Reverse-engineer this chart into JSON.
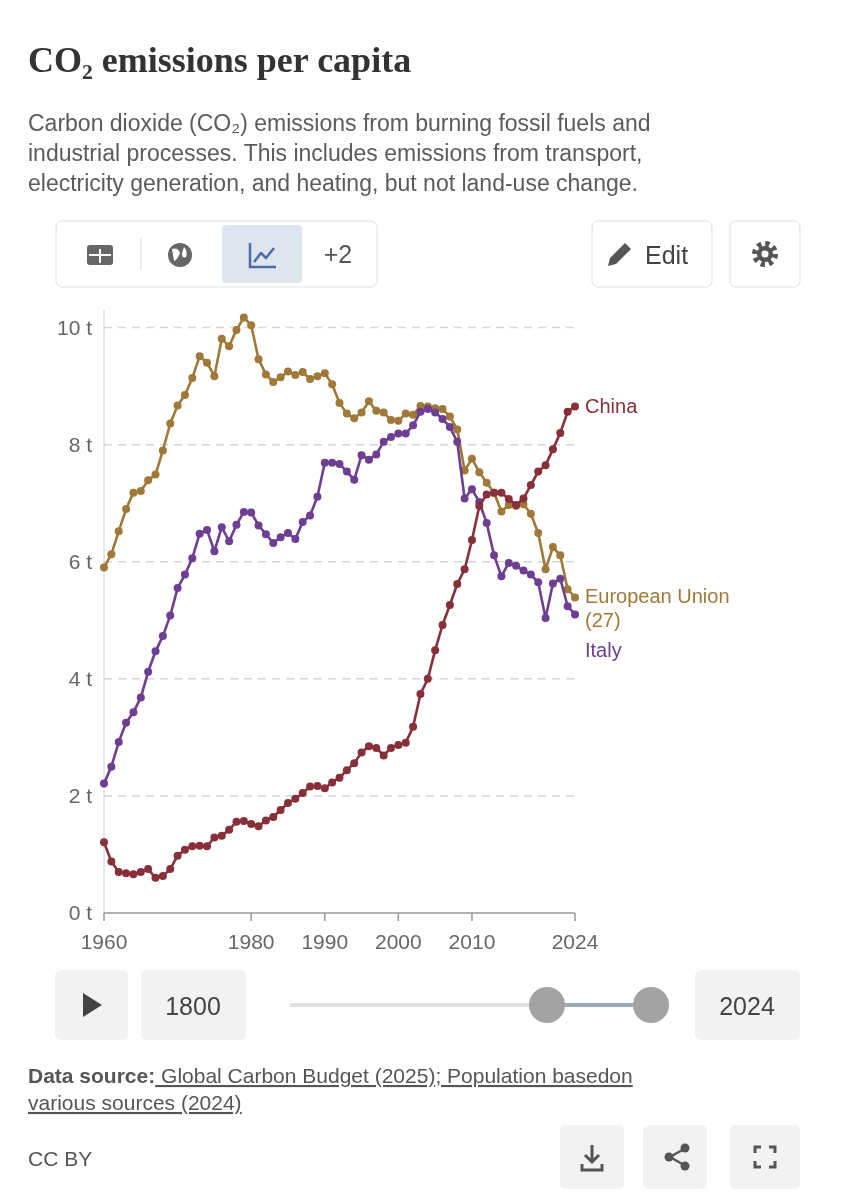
{
  "chart_data": {
    "type": "line",
    "title": "CO₂ emissions per capita",
    "subtitle": "Carbon dioxide (CO₂) emissions from burning fossil fuels and industrial processes. This includes emissions from transport, electricity generation, and heating, but not land-use change.",
    "x": [
      1960,
      1961,
      1962,
      1963,
      1964,
      1965,
      1966,
      1967,
      1968,
      1969,
      1970,
      1971,
      1972,
      1973,
      1974,
      1975,
      1976,
      1977,
      1978,
      1979,
      1980,
      1981,
      1982,
      1983,
      1984,
      1985,
      1986,
      1987,
      1988,
      1989,
      1990,
      1991,
      1992,
      1993,
      1994,
      1995,
      1996,
      1997,
      1998,
      1999,
      2000,
      2001,
      2002,
      2003,
      2004,
      2005,
      2006,
      2007,
      2008,
      2009,
      2010,
      2011,
      2012,
      2013,
      2014,
      2015,
      2016,
      2017,
      2018,
      2019,
      2020,
      2021,
      2022,
      2023,
      2024
    ],
    "xlim": [
      1960,
      2024
    ],
    "xticks": [
      1960,
      1980,
      1990,
      2000,
      2010,
      2024
    ],
    "ylim": [
      0,
      10.3
    ],
    "yticks": [
      {
        "value": 0,
        "label": "0 t"
      },
      {
        "value": 2,
        "label": "2 t"
      },
      {
        "value": 4,
        "label": "4 t"
      },
      {
        "value": 6,
        "label": "6 t"
      },
      {
        "value": 8,
        "label": "8 t"
      },
      {
        "value": 10,
        "label": "10 t"
      }
    ],
    "grid": "y",
    "marker": "circle",
    "line_style": "solid",
    "series": [
      {
        "name": "European Union (27)",
        "color": "#a07838",
        "values": [
          5.9,
          6.13,
          6.52,
          6.9,
          7.18,
          7.21,
          7.39,
          7.49,
          7.9,
          8.36,
          8.67,
          8.85,
          9.14,
          9.51,
          9.4,
          9.17,
          9.81,
          9.68,
          9.96,
          10.17,
          10.04,
          9.46,
          9.2,
          9.07,
          9.15,
          9.25,
          9.19,
          9.24,
          9.12,
          9.17,
          9.22,
          9.03,
          8.71,
          8.53,
          8.45,
          8.55,
          8.74,
          8.58,
          8.55,
          8.42,
          8.41,
          8.53,
          8.51,
          8.66,
          8.65,
          8.62,
          8.61,
          8.48,
          8.26,
          7.56,
          7.76,
          7.53,
          7.35,
          7.18,
          6.86,
          6.97,
          6.95,
          6.98,
          6.82,
          6.49,
          5.87,
          6.25,
          6.11,
          5.53,
          5.39
        ]
      },
      {
        "name": "Italy",
        "color": "#6d3e91",
        "values": [
          2.21,
          2.5,
          2.92,
          3.25,
          3.43,
          3.68,
          4.12,
          4.47,
          4.73,
          5.08,
          5.55,
          5.78,
          6.06,
          6.48,
          6.54,
          6.18,
          6.59,
          6.35,
          6.63,
          6.85,
          6.84,
          6.62,
          6.47,
          6.32,
          6.42,
          6.49,
          6.39,
          6.68,
          6.79,
          7.11,
          7.69,
          7.69,
          7.67,
          7.54,
          7.4,
          7.82,
          7.74,
          7.83,
          8.05,
          8.13,
          8.19,
          8.19,
          8.33,
          8.56,
          8.61,
          8.55,
          8.44,
          8.3,
          8.05,
          7.08,
          7.24,
          7.02,
          6.66,
          6.11,
          5.75,
          5.98,
          5.93,
          5.85,
          5.78,
          5.65,
          5.04,
          5.63,
          5.71,
          5.24,
          5.1
        ]
      },
      {
        "name": "China",
        "color": "#883039",
        "values": [
          1.21,
          0.88,
          0.7,
          0.68,
          0.66,
          0.7,
          0.75,
          0.6,
          0.63,
          0.75,
          0.98,
          1.08,
          1.14,
          1.15,
          1.14,
          1.29,
          1.32,
          1.42,
          1.56,
          1.57,
          1.52,
          1.48,
          1.58,
          1.64,
          1.76,
          1.88,
          1.95,
          2.05,
          2.16,
          2.17,
          2.13,
          2.23,
          2.31,
          2.44,
          2.56,
          2.74,
          2.85,
          2.82,
          2.69,
          2.82,
          2.87,
          2.91,
          3.18,
          3.74,
          4.0,
          4.49,
          4.92,
          5.26,
          5.62,
          5.87,
          6.37,
          6.95,
          7.15,
          7.18,
          7.18,
          7.07,
          6.97,
          7.08,
          7.31,
          7.54,
          7.65,
          7.92,
          8.2,
          8.56,
          8.65
        ]
      }
    ],
    "annotations": [
      "+2",
      "Edit",
      "1800",
      "2024",
      "Data source: Global Carbon Budget (2025); Population basedon various sources (2024)",
      "CC BY"
    ]
  }
}
